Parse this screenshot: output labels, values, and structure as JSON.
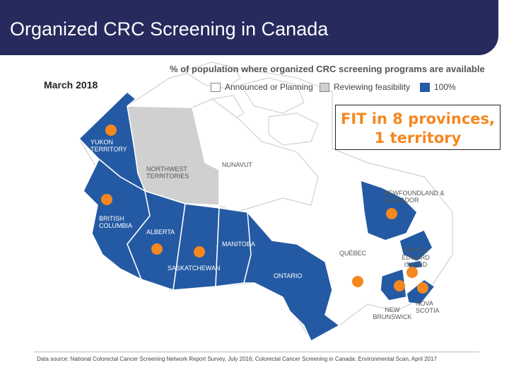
{
  "slide": {
    "title": "Organized CRC Screening in Canada",
    "date_label": "March 2018",
    "callout_line1": "FIT in 8 provinces,",
    "callout_line2": "1 territory",
    "source": "Data source: National Colorectal Cancer Screening Network Report Survey, July 2016; Colorectal Cancer Screening in Canada: Environmental Scan, April 2017"
  },
  "legend": {
    "title": "% of population where organized CRC screening programs are available",
    "items": [
      {
        "label": "Announced or Planning",
        "color": "#ffffff"
      },
      {
        "label": "Reviewing feasibility",
        "color": "#d0d0d0"
      },
      {
        "label": "100%",
        "color": "#245aa3"
      }
    ]
  },
  "regions": {
    "yukon": "YUKON TERRITORY",
    "nwt": "NORTHWEST TERRITORIES",
    "nunavut": "NUNAVUT",
    "bc": "BRITISH COLUMBIA",
    "alberta": "ALBERTA",
    "saskatchewan": "SASKATCHEWAN",
    "manitoba": "MANITOBA",
    "ontario": "ONTARIO",
    "quebec": "QUÉBEC",
    "newfoundland": "NEWFOUNDLAND & LABRADOR",
    "pei": "PRINCE EDWARD ISLAND",
    "nova_scotia": "NOVA SCOTIA",
    "new_brunswick": "NEW BRUNSWICK"
  },
  "colors": {
    "title_bar": "#262a5c",
    "program_available": "#245aa3",
    "reviewing": "#d0d0d0",
    "fit_marker": "#f5871f"
  }
}
